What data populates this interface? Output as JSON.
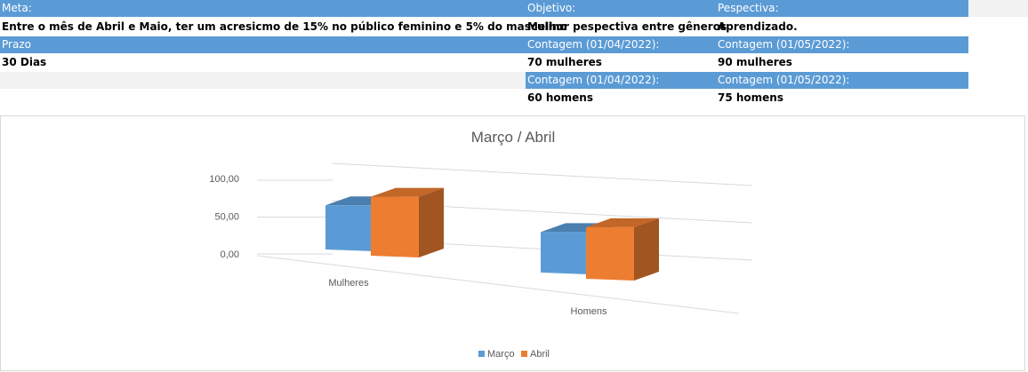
{
  "sheet": {
    "row1": {
      "meta": "Meta:",
      "objetivo": "Objetivo:",
      "perspectiva": "Pespectiva:"
    },
    "row2": {
      "meta": "Entre o mês de Abril e Maio, ter um acresicmo de 15% no público feminino e 5% do masculino",
      "objetivo": "Melhor pespectiva entre gêneros",
      "perspectiva": "Aprendizado."
    },
    "row3": {
      "prazo": "Prazo",
      "contagem_a": "Contagem (01/04/2022):",
      "contagem_b": "Contagem (01/05/2022):"
    },
    "row4": {
      "prazo": "30 Dias",
      "mulheres_a": "70 mulheres",
      "mulheres_b": "90 mulheres"
    },
    "row5": {
      "contagem_a": "Contagem (01/04/2022):",
      "contagem_b": "Contagem (01/05/2022):"
    },
    "row6": {
      "homens_a": "60 homens",
      "homens_b": "75 homens"
    }
  },
  "colors": {
    "header_blue": "#5b9bd5",
    "marco_blue": "#5b9bd5",
    "abril_orange": "#ed7d31"
  },
  "chart_data": {
    "type": "bar",
    "title": "Março / Abril",
    "categories": [
      "Mulheres",
      "Homens"
    ],
    "series": [
      {
        "name": "Março",
        "values": [
          60,
          55
        ]
      },
      {
        "name": "Abril",
        "values": [
          80,
          70
        ]
      }
    ],
    "ylim": [
      0,
      100
    ],
    "yticks": [
      0,
      50,
      100
    ],
    "ytick_labels": [
      "0,00",
      "50,00",
      "100,00"
    ],
    "grid": true,
    "legend": "bottom",
    "style": "3d-clustered-column"
  }
}
